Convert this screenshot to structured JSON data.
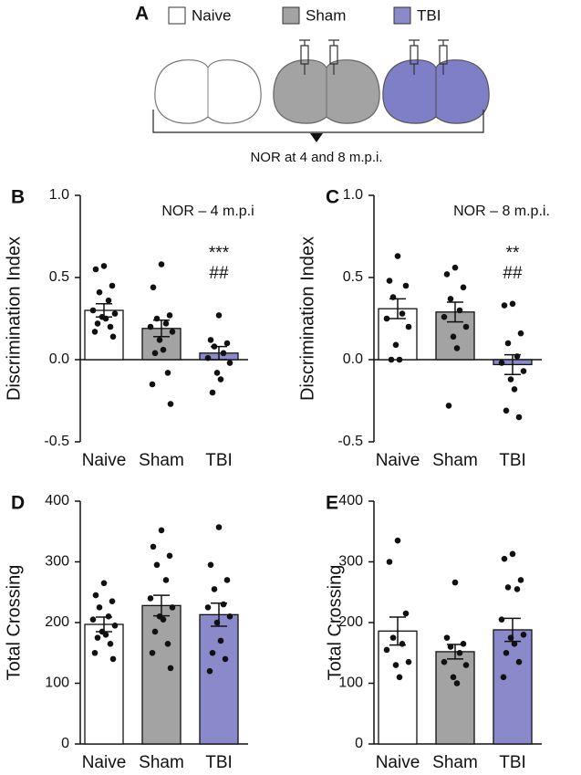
{
  "schematic": {
    "panel": "A",
    "legend": [
      {
        "label": "Naive",
        "color": "#ffffff"
      },
      {
        "label": "Sham",
        "color": "#a3a3a3"
      },
      {
        "label": "TBI",
        "color": "#8a8acb"
      }
    ],
    "caption": "NOR at 4 and 8 m.p.i."
  },
  "chart_data": [
    {
      "type": "bar",
      "panel": "B",
      "title": "NOR – 4 m.p.i",
      "y_label": "Discrimination Index",
      "categories": [
        "Naive",
        "Sham",
        "TBI"
      ],
      "colors": [
        "#ffffff",
        "#a3a3a3",
        "#8a8acb"
      ],
      "values": [
        0.3,
        0.19,
        0.04
      ],
      "errors": [
        0.04,
        0.05,
        0.04
      ],
      "points": [
        [
          0.57,
          0.55,
          0.45,
          0.41,
          0.36,
          0.3,
          0.28,
          0.26,
          0.25,
          0.22,
          0.2,
          0.17,
          0.14
        ],
        [
          0.58,
          0.44,
          0.27,
          0.25,
          0.22,
          0.2,
          0.17,
          0.12,
          0.06,
          0.04,
          -0.08,
          -0.15,
          -0.27
        ],
        [
          0.27,
          0.12,
          0.1,
          0.08,
          0.04,
          0.01,
          -0.02,
          -0.08,
          -0.12,
          -0.2
        ]
      ],
      "annotations": [
        "***",
        "##"
      ],
      "ylim": [
        -0.5,
        1.0
      ],
      "yticks": [
        -0.5,
        {
          "value": 0,
          "label": "0.0"
        },
        0.5,
        {
          "value": 1,
          "label": "1.0"
        }
      ]
    },
    {
      "type": "bar",
      "panel": "C",
      "title": "NOR – 8 m.p.i.",
      "y_label": "Discrimination Index",
      "categories": [
        "Naive",
        "Sham",
        "TBI"
      ],
      "colors": [
        "#ffffff",
        "#a3a3a3",
        "#8a8acb"
      ],
      "values": [
        0.31,
        0.29,
        -0.03
      ],
      "errors": [
        0.06,
        0.06,
        0.06
      ],
      "points": [
        [
          0.63,
          0.48,
          0.45,
          0.38,
          0.28,
          0.25,
          0.2,
          0.09,
          0.0,
          0.0
        ],
        [
          0.56,
          0.52,
          0.44,
          0.37,
          0.3,
          0.26,
          0.2,
          0.14,
          0.07,
          -0.28
        ],
        [
          0.34,
          0.33,
          0.16,
          0.1,
          0.02,
          -0.02,
          -0.07,
          -0.12,
          -0.18,
          -0.31,
          -0.35
        ]
      ],
      "annotations": [
        "**",
        "##"
      ],
      "ylim": [
        -0.5,
        1.0
      ],
      "yticks": [
        -0.5,
        {
          "value": 0,
          "label": "0.0"
        },
        0.5,
        {
          "value": 1,
          "label": "1.0"
        }
      ]
    },
    {
      "type": "bar",
      "panel": "D",
      "y_label": "Total Crossing",
      "categories": [
        "Naive",
        "Sham",
        "TBI"
      ],
      "colors": [
        "#ffffff",
        "#a3a3a3",
        "#8a8acb"
      ],
      "values": [
        197,
        228,
        213
      ],
      "errors": [
        12,
        17,
        19
      ],
      "points": [
        [
          265,
          245,
          235,
          225,
          210,
          205,
          195,
          185,
          180,
          175,
          165,
          150,
          140
        ],
        [
          352,
          325,
          310,
          295,
          270,
          240,
          225,
          210,
          205,
          185,
          165,
          150,
          125
        ],
        [
          357,
          295,
          270,
          255,
          230,
          225,
          210,
          200,
          170,
          150,
          140,
          120
        ]
      ],
      "ylim": [
        0,
        400
      ],
      "yticks": [
        0,
        100,
        200,
        300,
        400
      ]
    },
    {
      "type": "bar",
      "panel": "E",
      "y_label": "Total Crossing",
      "categories": [
        "Naive",
        "Sham",
        "TBI"
      ],
      "colors": [
        "#ffffff",
        "#a3a3a3",
        "#8a8acb"
      ],
      "values": [
        186,
        152,
        188
      ],
      "errors": [
        23,
        12,
        19
      ],
      "points": [
        [
          335,
          300,
          215,
          175,
          165,
          155,
          135,
          130,
          110
        ],
        [
          266,
          175,
          165,
          160,
          150,
          135,
          130,
          110,
          100
        ],
        [
          313,
          305,
          270,
          258,
          255,
          205,
          180,
          175,
          165,
          150,
          135,
          110
        ]
      ],
      "ylim": [
        0,
        400
      ],
      "yticks": [
        0,
        100,
        200,
        300,
        400
      ]
    }
  ]
}
